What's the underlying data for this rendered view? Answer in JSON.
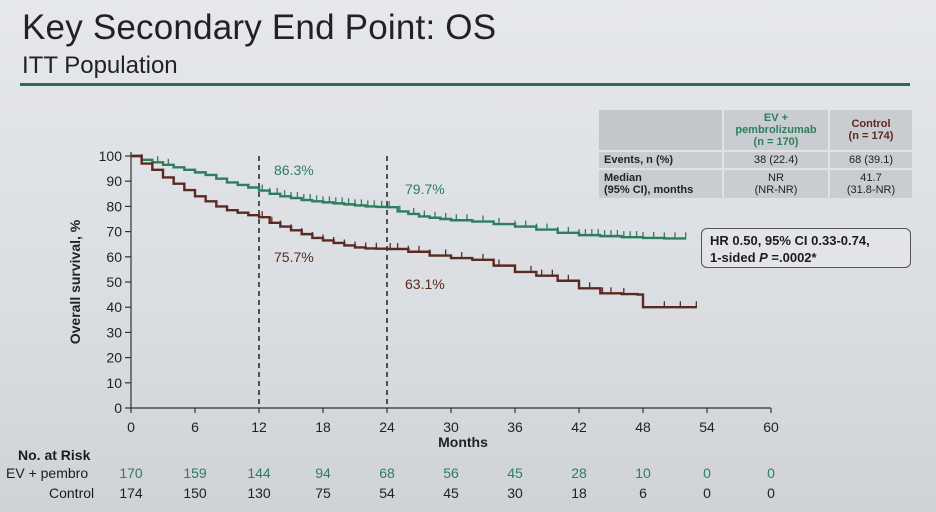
{
  "slide": {
    "title": "Key Secondary End Point: OS",
    "subtitle": "ITT Population"
  },
  "colors": {
    "ev": "#2e7d5e",
    "control": "#5a2a22",
    "accent": "#2f6a53"
  },
  "chart_data": {
    "type": "line",
    "xlabel": "Months",
    "ylabel": "Overall survival, %",
    "xlim": [
      0,
      60
    ],
    "ylim": [
      0,
      100
    ],
    "xticks": [
      0,
      6,
      12,
      18,
      24,
      30,
      36,
      42,
      48,
      54,
      60
    ],
    "yticks": [
      0,
      10,
      20,
      30,
      40,
      50,
      60,
      70,
      80,
      90,
      100
    ],
    "grid": false,
    "reference_lines_x": [
      12,
      24
    ],
    "series": [
      {
        "name": "EV + pembro",
        "color": "#2e7d5e",
        "x": [
          0,
          1,
          2,
          3,
          4,
          5,
          6,
          7,
          8,
          9,
          10,
          11,
          12,
          13,
          14,
          15,
          16,
          17,
          18,
          19,
          20,
          21,
          22,
          23,
          24,
          25,
          26,
          27,
          28,
          29,
          30,
          32,
          34,
          36,
          38,
          40,
          42,
          44,
          46,
          48,
          50,
          52
        ],
        "y": [
          100,
          98.5,
          97.5,
          96.5,
          95.5,
          94.5,
          93.5,
          92.5,
          91,
          89.5,
          88.5,
          87.5,
          86.3,
          85,
          84,
          83.3,
          82.5,
          82,
          81.6,
          81.2,
          80.8,
          80.4,
          80,
          79.8,
          79.7,
          78,
          77,
          76,
          75.5,
          75,
          74.5,
          74,
          73,
          72,
          70.8,
          69.5,
          68.6,
          68.2,
          67.8,
          67.5,
          67.3,
          67.3
        ],
        "censor_x": [
          1,
          2.5,
          3.5,
          12.3,
          13,
          13.7,
          14.4,
          15,
          15.6,
          16.2,
          16.8,
          17.4,
          18,
          18.6,
          19.2,
          19.8,
          20.4,
          21,
          21.6,
          22.2,
          22.8,
          23.5,
          24.2,
          25.2,
          26.5,
          27.5,
          28.5,
          29.5,
          30.5,
          31.5,
          33,
          34.5,
          36,
          37,
          38,
          39,
          40,
          41,
          42,
          42.6,
          43.2,
          43.8,
          44.4,
          45,
          45.6,
          46.2,
          46.8,
          47.4,
          48,
          49,
          50,
          51,
          52
        ]
      },
      {
        "name": "Control",
        "color": "#5a2a22",
        "x": [
          0,
          1,
          2,
          3,
          4,
          5,
          6,
          7,
          8,
          9,
          10,
          11,
          12,
          13,
          14,
          15,
          16,
          17,
          18,
          19,
          20,
          21,
          22,
          23,
          24,
          26,
          28,
          30,
          32,
          34,
          36,
          38,
          40,
          42,
          44,
          46,
          47.5,
          48,
          50,
          53
        ],
        "y": [
          100,
          97,
          94.5,
          91.5,
          89,
          86.5,
          84,
          82,
          80,
          78.5,
          77.5,
          76.5,
          75.7,
          73.5,
          72,
          70.5,
          69,
          67.5,
          66.5,
          65.5,
          64.5,
          63.7,
          63.3,
          63.2,
          63.1,
          62,
          60.5,
          59.5,
          58.8,
          56.5,
          54,
          52.5,
          50.5,
          47.5,
          45.5,
          45.2,
          45,
          40,
          40,
          40
        ],
        "censor_x": [
          12.3,
          13.2,
          14,
          15,
          16,
          17,
          18,
          19,
          20,
          21,
          22,
          23,
          24.3,
          25,
          26,
          27,
          28,
          29.5,
          31,
          33,
          34.5,
          36,
          37.5,
          38.5,
          39.5,
          41,
          42,
          43,
          44.2,
          45,
          46.2,
          48,
          50,
          51.5,
          53
        ]
      }
    ],
    "annotations": [
      {
        "text": "86.3%",
        "series": 0
      },
      {
        "text": "79.7%",
        "series": 0
      },
      {
        "text": "75.7%",
        "series": 1
      },
      {
        "text": "63.1%",
        "series": 1
      }
    ]
  },
  "stats_table": {
    "ev_header": "EV + pembrolizumab (n = 170)",
    "ev_header_line1": "EV +",
    "ev_header_line2": "pembrolizumab",
    "ev_header_line3": "(n = 170)",
    "ctl_header_line1": "Control",
    "ctl_header_line2": "(n = 174)",
    "rows": [
      {
        "label_line1": "Events, n (%)",
        "label_line2": "",
        "ev_line1": "38 (22.4)",
        "ev_line2": "",
        "ctl_line1": "68 (39.1)",
        "ctl_line2": ""
      },
      {
        "label_line1": "Median",
        "label_line2": "(95% CI), months",
        "ev_line1": "NR",
        "ev_line2": "(NR-NR)",
        "ctl_line1": "41.7",
        "ctl_line2": "(31.8-NR)"
      }
    ]
  },
  "hr_box": {
    "line1": "HR 0.50, 95% CI 0.33-0.74,",
    "line2_prefix": "1-sided ",
    "line2_p": "P",
    "line2_suffix": " =.0002*"
  },
  "risk_table": {
    "title": "No. at Risk",
    "rows": [
      {
        "label": "EV + pembro",
        "values": [
          "170",
          "159",
          "144",
          "94",
          "68",
          "56",
          "45",
          "28",
          "10",
          "0",
          "0"
        ]
      },
      {
        "label": "Control",
        "values": [
          "174",
          "150",
          "130",
          "75",
          "54",
          "45",
          "30",
          "18",
          "6",
          "0",
          "0"
        ]
      }
    ]
  }
}
